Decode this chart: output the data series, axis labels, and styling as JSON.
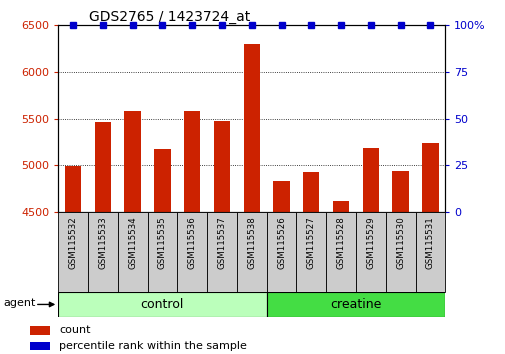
{
  "title": "GDS2765 / 1423724_at",
  "categories": [
    "GSM115532",
    "GSM115533",
    "GSM115534",
    "GSM115535",
    "GSM115536",
    "GSM115537",
    "GSM115538",
    "GSM115526",
    "GSM115527",
    "GSM115528",
    "GSM115529",
    "GSM115530",
    "GSM115531"
  ],
  "bar_values": [
    4990,
    5460,
    5580,
    5180,
    5580,
    5470,
    6290,
    4840,
    4930,
    4620,
    5190,
    4940,
    5240
  ],
  "percentile_values": [
    100,
    100,
    100,
    100,
    100,
    100,
    100,
    100,
    100,
    100,
    100,
    100,
    100
  ],
  "bar_color": "#cc2200",
  "percentile_color": "#0000cc",
  "ylim_left": [
    4500,
    6500
  ],
  "ylim_right": [
    0,
    100
  ],
  "yticks_left": [
    4500,
    5000,
    5500,
    6000,
    6500
  ],
  "yticks_right": [
    0,
    25,
    50,
    75,
    100
  ],
  "groups": [
    {
      "label": "control",
      "start": 0,
      "end": 7,
      "color": "#bbffbb"
    },
    {
      "label": "creatine",
      "start": 7,
      "end": 13,
      "color": "#44dd44"
    }
  ],
  "agent_label": "agent",
  "legend_count_label": "count",
  "legend_percentile_label": "percentile rank within the sample",
  "bar_width": 0.55,
  "background_color": "#ffffff",
  "tick_label_color_left": "#cc2200",
  "tick_label_color_right": "#0000cc",
  "tick_box_color": "#cccccc",
  "right_axis_label": "100%"
}
